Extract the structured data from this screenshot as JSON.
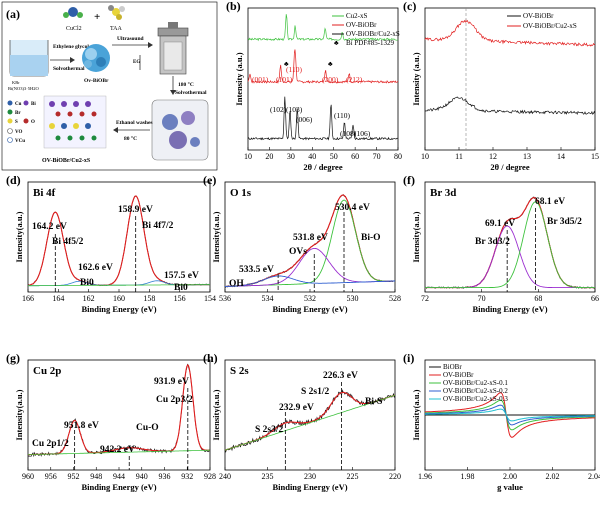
{
  "a": {
    "label": "(a)",
    "cucl2": "CuCl2",
    "plus": "+",
    "taa": "TAA",
    "ethylene_glycol": "Ethylene glycol",
    "solvothermal": "Solvothermal",
    "kbr_bi": "KBr",
    "kbr_bi2": "Bi(NO3)3·5H2O",
    "ov_biobr": "Ov-BiOBr",
    "ultrasound": "Ultrasound",
    "eg": "EG",
    "temp": "180 °C",
    "solvo2": "Solvothermal",
    "ethanol": "Ethanol washes",
    "dry": "80 °C",
    "leg_cu": "Cu",
    "leg_bi": "Bi",
    "leg_br": "Br",
    "leg_s": "S",
    "leg_o": "O",
    "leg_vo": "VO",
    "leg_vcu": "VCu",
    "product": "OV-BiOBr/Cu2-xS"
  },
  "b": {
    "label": "(b)",
    "xlabel": "2θ / degree",
    "ylabel": "Intensity (a.u.)",
    "xticks": [
      "10",
      "20",
      "30",
      "40",
      "50",
      "60",
      "70",
      "80"
    ],
    "legend": [
      "Cu2-xS",
      "OV-BiOBr",
      "OV-BiOBr/Cu2-xS",
      "Bi PDF#85-1329"
    ],
    "peaks_red": [
      "(001)",
      "(101)",
      "(110)",
      "(200)",
      "(212)"
    ],
    "peaks_black": [
      "(102)",
      "(103)",
      "(006)",
      "(110)",
      "(108)",
      "(106)"
    ]
  },
  "c": {
    "label": "(c)",
    "xlabel": "2θ / degree",
    "ylabel": "Intensity (a.u.)",
    "xticks": [
      "10",
      "11",
      "12",
      "13",
      "14",
      "15"
    ],
    "legend": [
      "OV-BiOBr",
      "OV-BiOBr/Cu2-xS"
    ]
  },
  "d": {
    "label": "(d)",
    "title": "Bi 4f",
    "xlabel": "Binding Energy (eV)",
    "ylabel": "Intensity(a.u.)",
    "xticks": [
      "166",
      "164",
      "162",
      "160",
      "158",
      "156",
      "154"
    ],
    "annotations": [
      "164.2 eV",
      "Bi 4f5/2",
      "158.9 eV",
      "Bi 4f7/2",
      "162.6 eV",
      "Bi0",
      "157.5 eV",
      "Bi0"
    ]
  },
  "e": {
    "label": "(e)",
    "title": "O 1s",
    "xlabel": "Binding Energy (eV)",
    "ylabel": "Intensity(a.u.)",
    "xticks": [
      "536",
      "534",
      "532",
      "530",
      "528"
    ],
    "annotations": [
      "530.4 eV",
      "Bi-O",
      "531.8 eV",
      "OVs",
      "533.5 eV",
      "OH"
    ]
  },
  "f": {
    "label": "(f)",
    "title": "Br 3d",
    "xlabel": "Binding Energy (eV)",
    "ylabel": "Intensity(a.u.)",
    "xticks": [
      "72",
      "70",
      "68",
      "66"
    ],
    "annotations": [
      "68.1 eV",
      "69.1 eV",
      "Br 3d3/2",
      "Br 3d5/2"
    ]
  },
  "g": {
    "label": "(g)",
    "title": "Cu 2p",
    "xlabel": "Binding Energy (eV)",
    "ylabel": "Intensity(a.u.)",
    "xticks": [
      "960",
      "956",
      "952",
      "948",
      "944",
      "940",
      "936",
      "932",
      "928"
    ],
    "annotations": [
      "931.9 eV",
      "Cu 2p3/2",
      "951.8 eV",
      "Cu 2p1/2",
      "942.2 eV",
      "Cu-O"
    ]
  },
  "h": {
    "label": "(h)",
    "title": "S 2s",
    "xlabel": "Binding Energy (eV)",
    "ylabel": "Intensity(a.u.)",
    "xticks": [
      "240",
      "235",
      "230",
      "225",
      "220"
    ],
    "annotations": [
      "226.3 eV",
      "S 2s1/2",
      "Bi-S",
      "232.9 eV",
      "S 2s3/2"
    ]
  },
  "i": {
    "label": "(i)",
    "xlabel": "g value",
    "ylabel": "Intensity(a.u.)",
    "xticks": [
      "1.96",
      "1.98",
      "2.00",
      "2.02",
      "2.04"
    ],
    "legend": [
      "BiOBr",
      "OV-BiOBr",
      "OV-BiOBr/Cu2-xS-0.1",
      "OV-BiOBr/Cu2-xS-0.2",
      "OV-BiOBr/Cu2-xS-0.3"
    ]
  }
}
